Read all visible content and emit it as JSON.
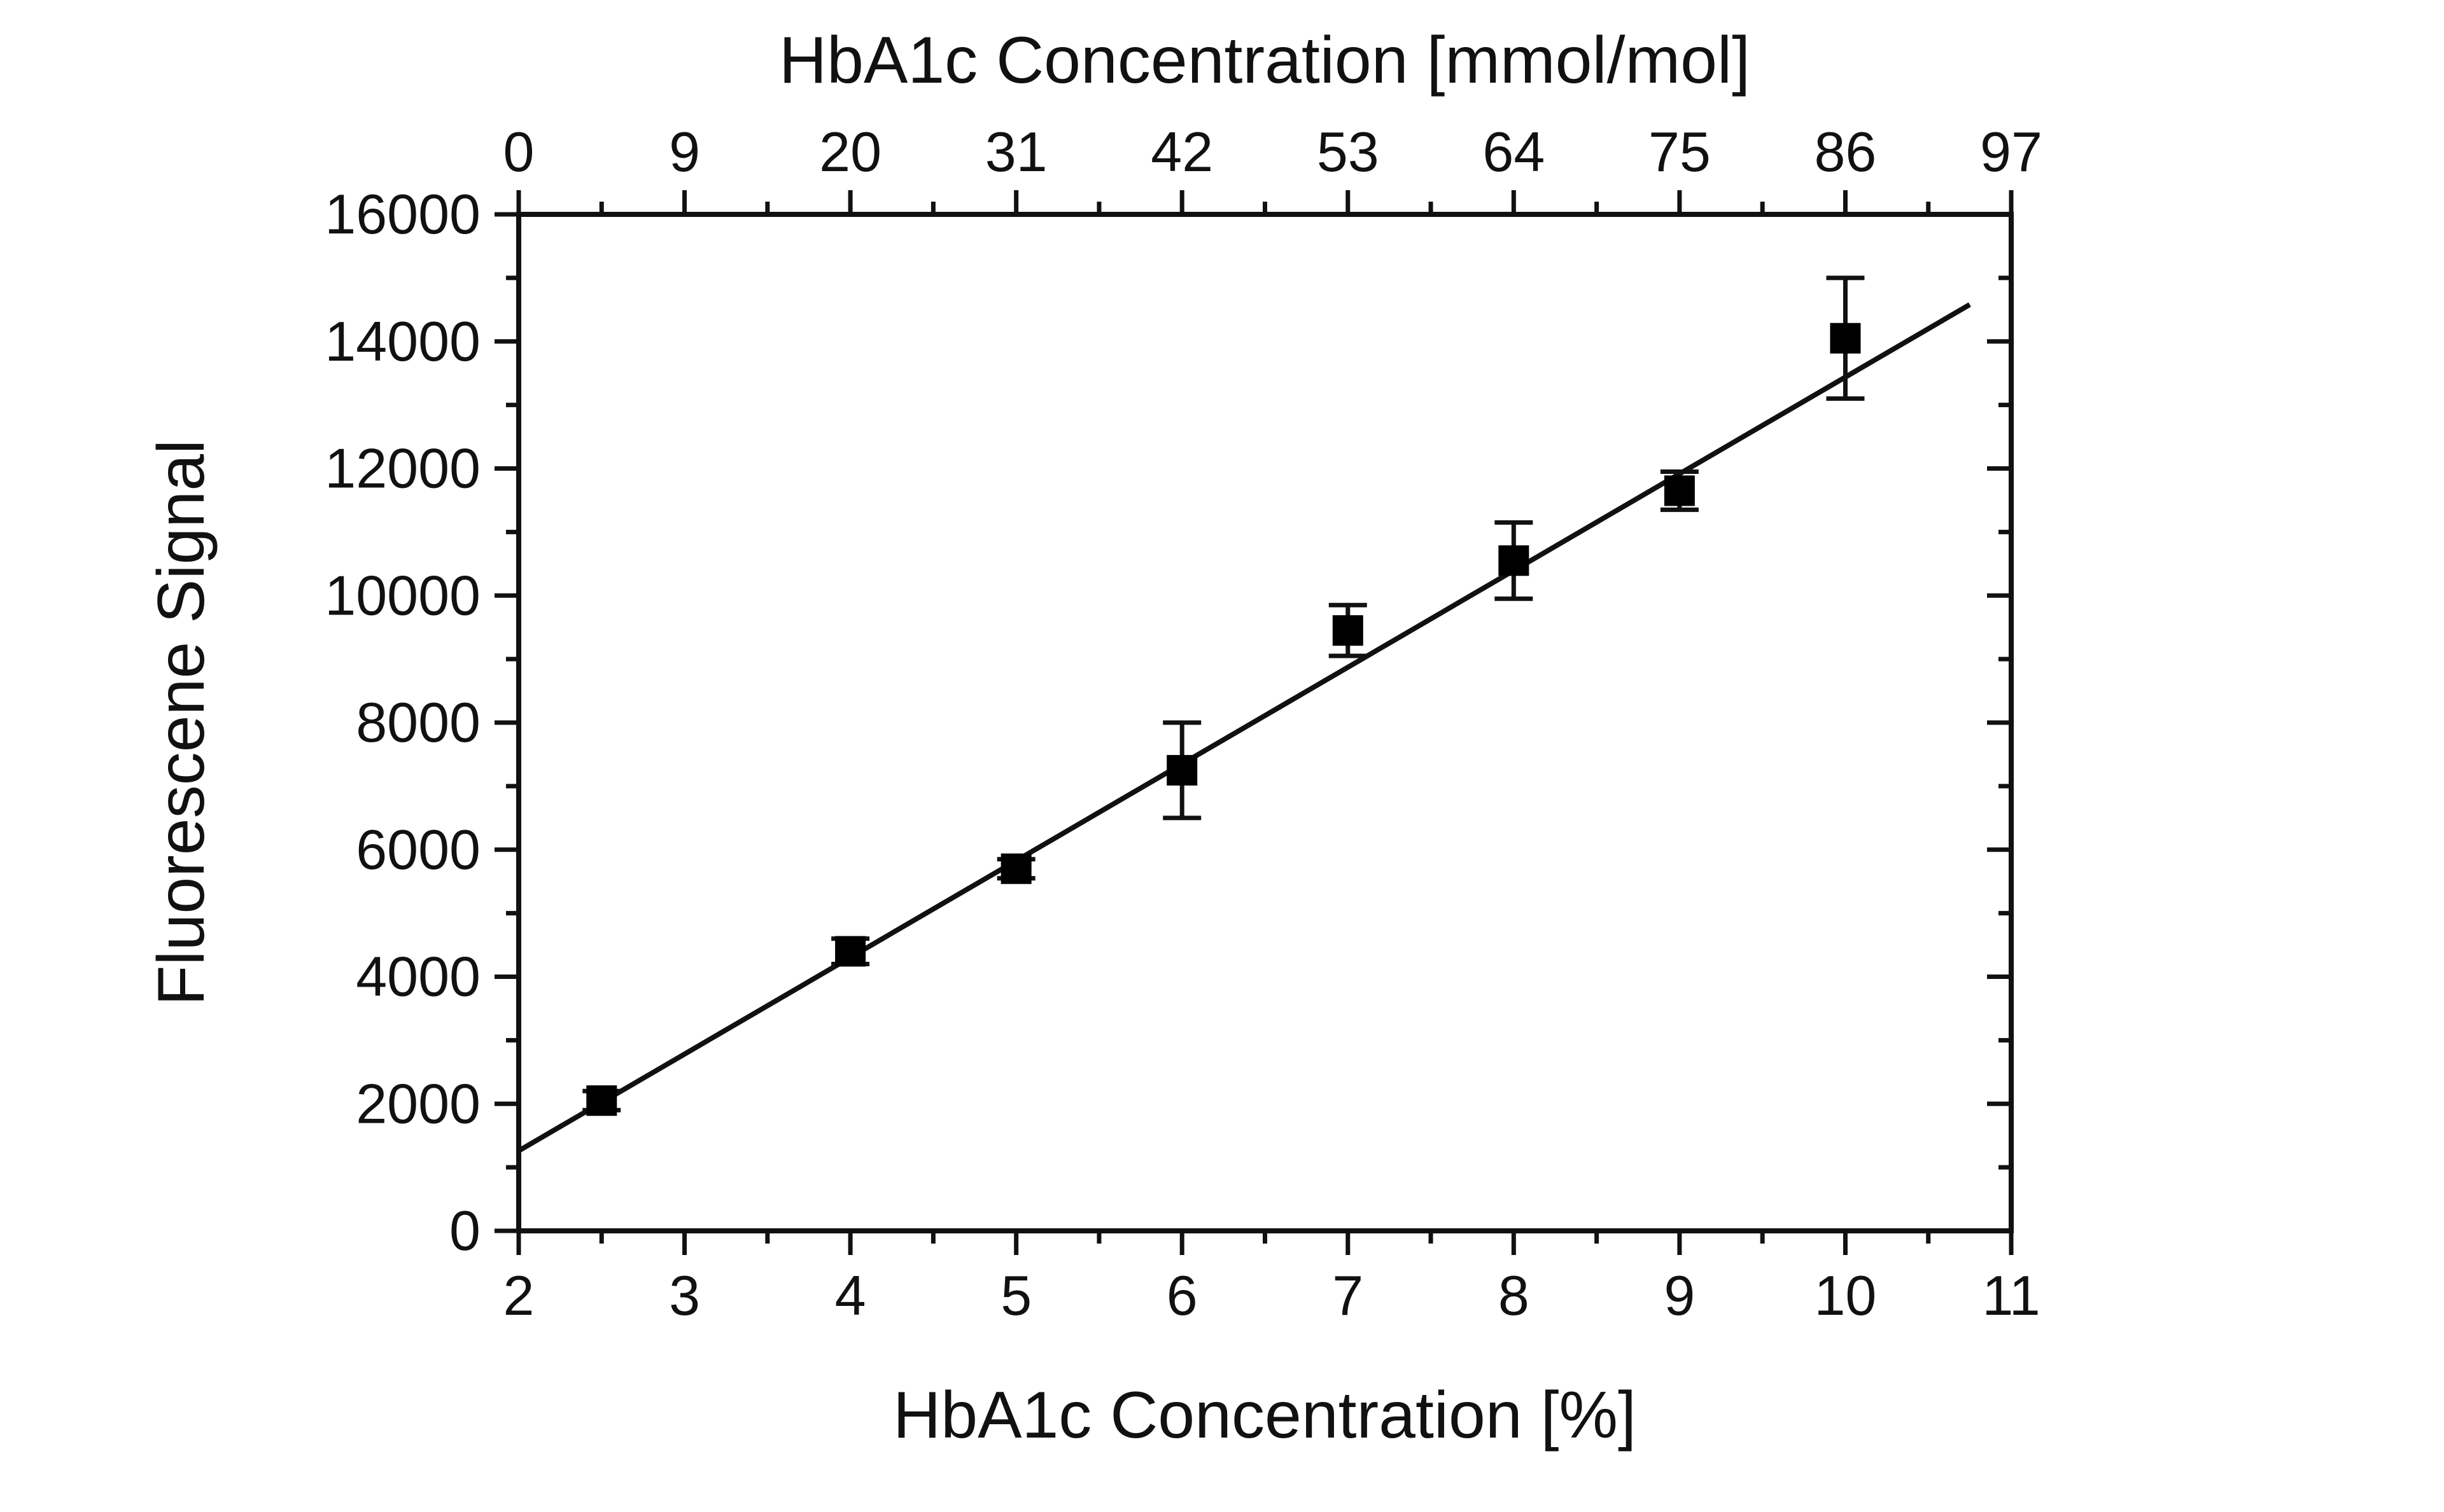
{
  "chart_data": {
    "type": "scatter",
    "xlabel": "HbA1c Concentration [%]",
    "ylabel": "Fluorescene Signal",
    "x2label": "HbA1c Concentration [mmol/mol]",
    "xlim": [
      2,
      11
    ],
    "ylim": [
      0,
      16000
    ],
    "x_ticks": [
      2,
      3,
      4,
      5,
      6,
      7,
      8,
      9,
      10,
      11
    ],
    "y_ticks": [
      0,
      2000,
      4000,
      6000,
      8000,
      10000,
      12000,
      14000,
      16000
    ],
    "x2_ticks": [
      {
        "value": 0,
        "at": 2
      },
      {
        "value": 9,
        "at": 3
      },
      {
        "value": 20,
        "at": 4
      },
      {
        "value": 31,
        "at": 5
      },
      {
        "value": 42,
        "at": 6
      },
      {
        "value": 53,
        "at": 7
      },
      {
        "value": 64,
        "at": 8
      },
      {
        "value": 75,
        "at": 9
      },
      {
        "value": 86,
        "at": 10
      },
      {
        "value": 97,
        "at": 11
      }
    ],
    "points": [
      {
        "x": 2.5,
        "y": 2050,
        "err": 150
      },
      {
        "x": 4,
        "y": 4400,
        "err": 200
      },
      {
        "x": 5,
        "y": 5700,
        "err": 150
      },
      {
        "x": 6,
        "y": 7250,
        "err": 750
      },
      {
        "x": 7,
        "y": 9450,
        "err": 400
      },
      {
        "x": 8,
        "y": 10550,
        "err": 600
      },
      {
        "x": 9,
        "y": 11650,
        "err": 300
      },
      {
        "x": 10,
        "y": 14050,
        "err": 950
      }
    ],
    "fit_line": {
      "x": [
        2,
        10.75
      ],
      "y": [
        1260,
        14580
      ]
    },
    "grid": false,
    "marker": "square",
    "color": "#000000"
  }
}
